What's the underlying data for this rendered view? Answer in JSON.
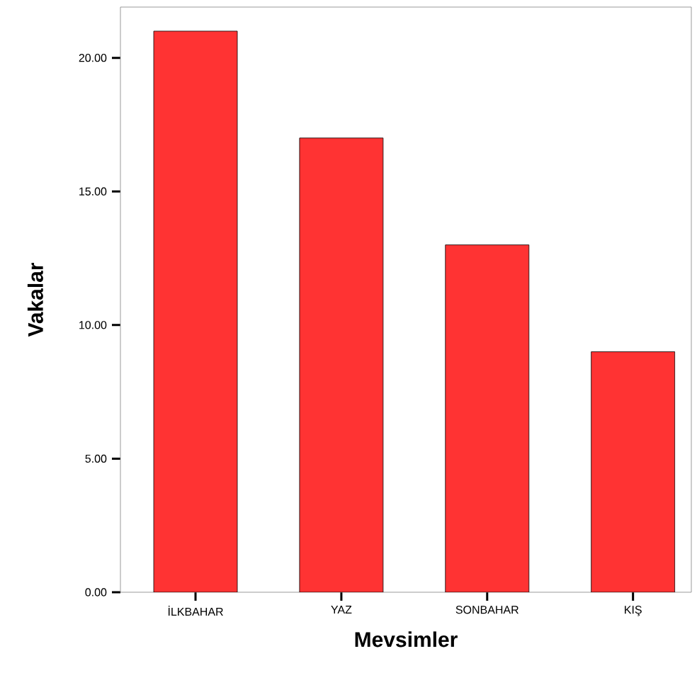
{
  "chart_data": {
    "type": "bar",
    "xlabel": "Mevsimler",
    "ylabel": "Vakalar",
    "categories": [
      "İLKBAHAR",
      "YAZ",
      "SONBAHAR",
      "KIŞ"
    ],
    "values": [
      21,
      17,
      13,
      9
    ],
    "color": "#ff3333",
    "ylim": [
      0,
      21.9
    ],
    "yticks": [
      {
        "value": 0,
        "label": "0.00"
      },
      {
        "value": 5,
        "label": "5.00"
      },
      {
        "value": 10,
        "label": "10.00"
      },
      {
        "value": 15,
        "label": "15.00"
      },
      {
        "value": 20,
        "label": "20.00"
      }
    ]
  }
}
